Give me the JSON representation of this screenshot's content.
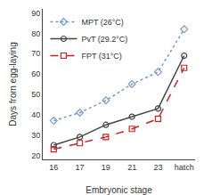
{
  "chart_data": {
    "type": "line",
    "categories": [
      "16",
      "17",
      "19",
      "21",
      "23",
      "hatch"
    ],
    "series": [
      {
        "name": "MPT (26°C)",
        "color": "#7799cc",
        "marker": "diamond",
        "line_style": "dotted",
        "values": [
          37,
          41,
          47,
          55,
          61,
          82
        ]
      },
      {
        "name": "PvT (29.2°C)",
        "color": "#444444",
        "marker": "circle",
        "line_style": "solid",
        "values": [
          25,
          29,
          35,
          39,
          43,
          69
        ]
      },
      {
        "name": "FPT (31°C)",
        "color": "#cc2222",
        "marker": "square",
        "line_style": "dashed",
        "values": [
          23,
          26,
          29,
          33,
          38,
          63
        ]
      }
    ],
    "xlabel": "Embryonic stage",
    "ylabel": "Days from egg-laying",
    "ylim": [
      18,
      92
    ],
    "yticks": [
      20,
      30,
      40,
      50,
      60,
      70,
      80,
      90
    ],
    "grid": false,
    "legend": "upper left"
  }
}
